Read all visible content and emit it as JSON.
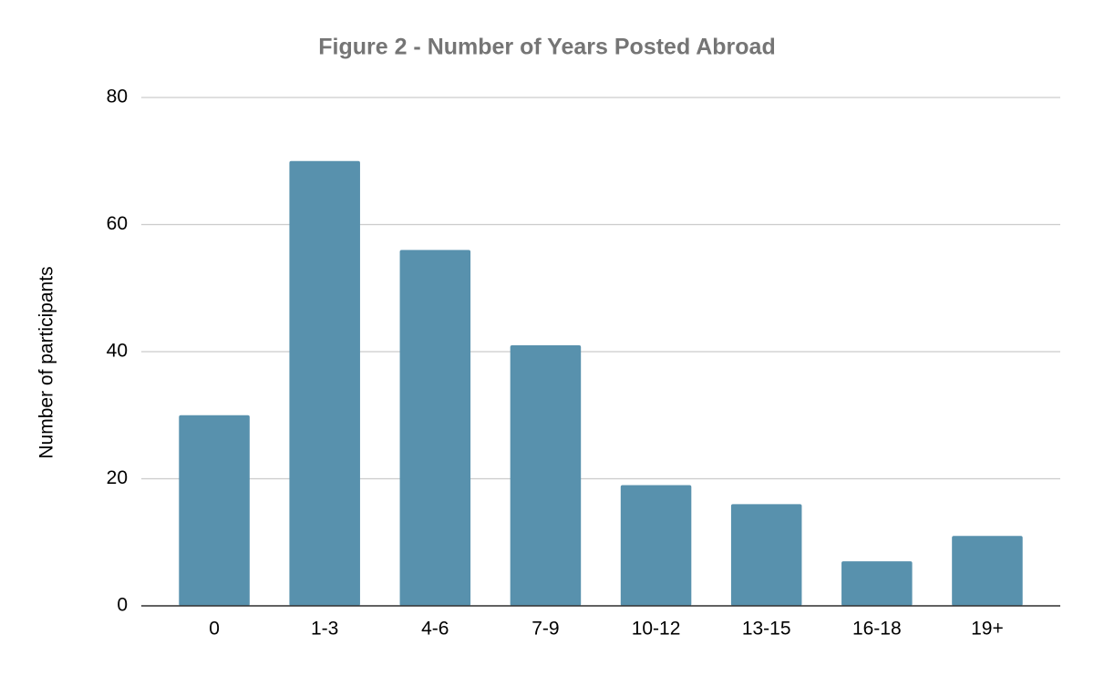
{
  "chart_data": {
    "type": "bar",
    "title": "Figure 2 - Number of Years Posted Abroad",
    "y_label": "Number of participants",
    "categories": [
      "0",
      "1-3",
      "4-6",
      "7-9",
      "10-12",
      "13-15",
      "16-18",
      "19+"
    ],
    "values": [
      30,
      70,
      56,
      41,
      19,
      16,
      7,
      11
    ],
    "color": "#5891ad",
    "ylim": [
      0,
      80
    ],
    "yticks": [
      0,
      20,
      40,
      60,
      80
    ],
    "grid": true
  }
}
